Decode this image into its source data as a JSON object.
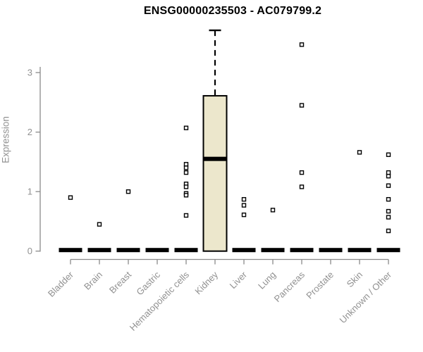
{
  "chart_data": {
    "type": "boxplot",
    "title": "ENSG00000235503 - AC079799.2",
    "ylabel": "Expression",
    "xlabel": "",
    "ylim": [
      0,
      3.75
    ],
    "yticks": [
      0,
      1,
      2,
      3
    ],
    "grid": false,
    "legend": "none",
    "colors": {
      "box_fill": "#ECE7CC",
      "box_stroke": "#000000",
      "axis_line": "#8a8a8a",
      "tick_label": "#919191",
      "title": "#000000",
      "outlier_stroke": "#000000",
      "outlier_fill": "#ffffff"
    },
    "categories": [
      "Bladder",
      "Brain",
      "Breast",
      "Gastric",
      "Hematopoietic cells",
      "Kidney",
      "Liver",
      "Lung",
      "Pancreas",
      "Prostate",
      "Skin",
      "Unknown / Other"
    ],
    "series": [
      {
        "category": "Bladder",
        "q1": 0,
        "median": 0,
        "q3": 0,
        "whisker_low": 0,
        "whisker_high": 0,
        "outliers": [
          0.9
        ]
      },
      {
        "category": "Brain",
        "q1": 0,
        "median": 0,
        "q3": 0,
        "whisker_low": 0,
        "whisker_high": 0,
        "outliers": [
          0.45
        ]
      },
      {
        "category": "Breast",
        "q1": 0,
        "median": 0,
        "q3": 0,
        "whisker_low": 0,
        "whisker_high": 0,
        "outliers": [
          1.0
        ]
      },
      {
        "category": "Gastric",
        "q1": 0,
        "median": 0,
        "q3": 0,
        "whisker_low": 0,
        "whisker_high": 0,
        "outliers": []
      },
      {
        "category": "Hematopoietic cells",
        "q1": 0,
        "median": 0,
        "q3": 0,
        "whisker_low": 0,
        "whisker_high": 0,
        "outliers": [
          2.07,
          1.46,
          1.4,
          1.32,
          1.13,
          1.08,
          0.97,
          0.94,
          0.6
        ]
      },
      {
        "category": "Kidney",
        "q1": 0,
        "median": 1.55,
        "q3": 2.61,
        "whisker_low": 0,
        "whisker_high": 3.71,
        "outliers": []
      },
      {
        "category": "Liver",
        "q1": 0,
        "median": 0,
        "q3": 0,
        "whisker_low": 0,
        "whisker_high": 0,
        "outliers": [
          0.87,
          0.77,
          0.61
        ]
      },
      {
        "category": "Lung",
        "q1": 0,
        "median": 0,
        "q3": 0,
        "whisker_low": 0,
        "whisker_high": 0,
        "outliers": [
          0.69
        ]
      },
      {
        "category": "Pancreas",
        "q1": 0,
        "median": 0,
        "q3": 0,
        "whisker_low": 0,
        "whisker_high": 0,
        "outliers": [
          3.47,
          2.45,
          1.32,
          1.08
        ]
      },
      {
        "category": "Prostate",
        "q1": 0,
        "median": 0,
        "q3": 0,
        "whisker_low": 0,
        "whisker_high": 0,
        "outliers": []
      },
      {
        "category": "Skin",
        "q1": 0,
        "median": 0,
        "q3": 0,
        "whisker_low": 0,
        "whisker_high": 0,
        "outliers": [
          1.66
        ]
      },
      {
        "category": "Unknown / Other",
        "q1": 0,
        "median": 0,
        "q3": 0,
        "whisker_low": 0,
        "whisker_high": 0,
        "outliers": [
          1.62,
          1.32,
          1.26,
          1.1,
          0.87,
          0.67,
          0.57,
          0.34
        ]
      }
    ]
  }
}
